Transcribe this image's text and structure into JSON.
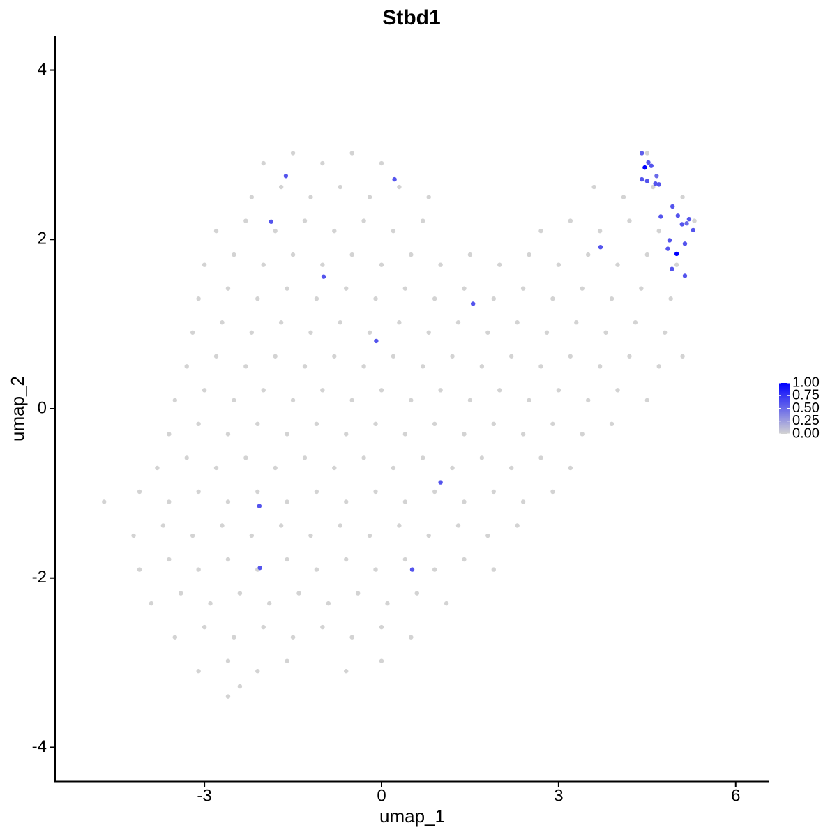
{
  "chart_data": {
    "type": "scatter",
    "title": "Stbd1",
    "x_label": "umap_1",
    "y_label": "umap_2",
    "xlim": [
      -5.53,
      6.57
    ],
    "ylim": [
      -4.4,
      4.4
    ],
    "xticks": [
      -3,
      0,
      3,
      6
    ],
    "yticks": [
      -4,
      -2,
      0,
      2,
      4
    ],
    "color_low": "#d3d3d3",
    "color_high": "#0000ff",
    "legend_position": "right",
    "legend_ticks": [
      {
        "value": 0,
        "label": "0.00"
      },
      {
        "value": 0.25,
        "label": "0.25"
      },
      {
        "value": 0.5,
        "label": "0.50"
      },
      {
        "value": 0.75,
        "label": "0.75"
      },
      {
        "value": 1,
        "label": "1.00"
      }
    ],
    "x": [
      -2.0,
      -1.5,
      -1.0,
      -0.5,
      0.0,
      4.5,
      -2.2,
      -1.7,
      -1.2,
      -0.7,
      -0.2,
      0.3,
      0.8,
      3.6,
      4.1,
      4.6,
      5.1,
      -2.8,
      -2.3,
      -1.8,
      -1.3,
      -0.8,
      -0.3,
      0.2,
      0.7,
      2.7,
      3.2,
      3.7,
      4.2,
      4.7,
      5.3,
      -3.0,
      -2.5,
      -2.0,
      -1.5,
      -1.0,
      -0.5,
      0.0,
      0.5,
      1.0,
      1.5,
      2.0,
      2.5,
      3.0,
      3.5,
      4.0,
      4.5,
      5.0,
      -3.1,
      -2.6,
      -2.1,
      -1.6,
      -1.1,
      -0.6,
      -0.1,
      0.4,
      0.9,
      1.4,
      1.9,
      2.4,
      2.9,
      3.4,
      3.9,
      4.4,
      4.9,
      -3.2,
      -2.7,
      -2.2,
      -1.7,
      -1.2,
      -0.7,
      -0.2,
      0.3,
      0.8,
      1.3,
      1.8,
      2.3,
      2.8,
      3.3,
      3.8,
      4.3,
      4.8,
      -3.3,
      -2.8,
      -2.3,
      -1.8,
      -1.3,
      -0.8,
      -0.3,
      0.2,
      0.7,
      1.2,
      1.7,
      2.2,
      2.7,
      3.2,
      3.7,
      4.2,
      4.7,
      5.1,
      -3.5,
      -3.0,
      -2.5,
      -2.0,
      -1.5,
      -1.0,
      -0.5,
      0.0,
      0.5,
      1.0,
      1.5,
      2.0,
      2.5,
      3.0,
      3.5,
      4.0,
      4.5,
      -3.6,
      -3.1,
      -2.6,
      -2.1,
      -1.6,
      -1.1,
      -0.6,
      -0.1,
      0.4,
      0.9,
      1.4,
      1.9,
      2.4,
      2.9,
      3.4,
      3.9,
      -3.8,
      -3.3,
      -2.8,
      -2.3,
      -1.8,
      -1.3,
      -0.8,
      -0.3,
      0.2,
      0.7,
      1.2,
      1.7,
      2.2,
      2.7,
      3.2,
      -4.7,
      -4.1,
      -3.6,
      -3.1,
      -2.6,
      -2.1,
      -1.6,
      -1.1,
      -0.6,
      -0.1,
      0.4,
      0.9,
      1.4,
      1.9,
      2.4,
      2.9,
      -4.2,
      -3.7,
      -3.2,
      -2.7,
      -2.2,
      -1.7,
      -1.2,
      -0.7,
      -0.2,
      0.3,
      0.8,
      1.3,
      1.8,
      2.3,
      -4.1,
      -3.6,
      -3.1,
      -2.6,
      -2.1,
      -1.6,
      -1.1,
      -0.6,
      -0.1,
      0.4,
      0.9,
      1.4,
      1.9,
      -3.9,
      -3.4,
      -2.9,
      -2.4,
      -1.9,
      -1.4,
      -0.9,
      -0.4,
      0.1,
      0.6,
      1.1,
      -3.5,
      -3.0,
      -2.5,
      -2.0,
      -1.5,
      -1.0,
      -0.5,
      0.0,
      0.5,
      -3.1,
      -2.6,
      -2.1,
      -1.6,
      -0.6,
      0.0,
      -2.6,
      -2.4,
      -1.62,
      -1.87,
      0.22,
      -0.98,
      -0.09,
      1.55,
      3.71,
      1.0,
      -2.07,
      -2.06,
      0.52,
      4.41,
      4.46,
      4.52,
      4.57,
      4.41,
      4.5,
      4.64,
      4.7,
      4.66,
      4.73,
      4.93,
      5.02,
      5.09,
      5.21,
      5.28,
      4.88,
      4.85,
      5.0,
      5.14,
      4.92,
      5.14,
      5.17
    ],
    "y": [
      2.9,
      3.02,
      2.9,
      3.02,
      2.9,
      3.02,
      2.5,
      2.62,
      2.5,
      2.62,
      2.5,
      2.62,
      2.5,
      2.62,
      2.5,
      2.62,
      2.5,
      2.1,
      2.22,
      2.1,
      2.22,
      2.1,
      2.22,
      2.1,
      2.22,
      2.1,
      2.22,
      2.1,
      2.22,
      2.1,
      2.22,
      1.7,
      1.82,
      1.7,
      1.82,
      1.7,
      1.82,
      1.7,
      1.82,
      1.7,
      1.82,
      1.7,
      1.82,
      1.7,
      1.82,
      1.7,
      1.82,
      1.7,
      1.3,
      1.42,
      1.3,
      1.42,
      1.3,
      1.42,
      1.3,
      1.42,
      1.3,
      1.42,
      1.3,
      1.42,
      1.3,
      1.42,
      1.3,
      1.42,
      1.3,
      0.9,
      1.02,
      0.9,
      1.02,
      0.9,
      1.02,
      0.9,
      1.02,
      0.9,
      1.02,
      0.9,
      1.02,
      0.9,
      1.02,
      0.9,
      1.02,
      0.9,
      0.5,
      0.62,
      0.5,
      0.62,
      0.5,
      0.62,
      0.5,
      0.62,
      0.5,
      0.62,
      0.5,
      0.62,
      0.5,
      0.62,
      0.5,
      0.62,
      0.5,
      0.62,
      0.1,
      0.22,
      0.1,
      0.22,
      0.1,
      0.22,
      0.1,
      0.22,
      0.1,
      0.22,
      0.1,
      0.22,
      0.1,
      0.22,
      0.1,
      0.22,
      0.1,
      -0.3,
      -0.18,
      -0.3,
      -0.18,
      -0.3,
      -0.18,
      -0.3,
      -0.18,
      -0.3,
      -0.18,
      -0.3,
      -0.18,
      -0.3,
      -0.18,
      -0.3,
      -0.18,
      -0.7,
      -0.58,
      -0.7,
      -0.58,
      -0.7,
      -0.58,
      -0.7,
      -0.58,
      -0.7,
      -0.58,
      -0.7,
      -0.58,
      -0.7,
      -0.58,
      -0.7,
      -1.1,
      -0.98,
      -1.1,
      -0.98,
      -1.1,
      -0.98,
      -1.1,
      -0.98,
      -1.1,
      -0.98,
      -1.1,
      -0.98,
      -1.1,
      -0.98,
      -1.1,
      -0.98,
      -1.5,
      -1.38,
      -1.5,
      -1.38,
      -1.5,
      -1.38,
      -1.5,
      -1.38,
      -1.5,
      -1.38,
      -1.5,
      -1.38,
      -1.5,
      -1.38,
      -1.9,
      -1.78,
      -1.9,
      -1.78,
      -1.9,
      -1.78,
      -1.9,
      -1.78,
      -1.9,
      -1.78,
      -1.9,
      -1.78,
      -1.9,
      -2.3,
      -2.18,
      -2.3,
      -2.18,
      -2.3,
      -2.18,
      -2.3,
      -2.18,
      -2.3,
      -2.18,
      -2.3,
      -2.7,
      -2.58,
      -2.7,
      -2.58,
      -2.7,
      -2.58,
      -2.7,
      -2.58,
      -2.7,
      -3.1,
      -2.98,
      -3.1,
      -2.98,
      -3.1,
      -2.98,
      -3.4,
      -3.28,
      2.75,
      2.21,
      2.71,
      1.56,
      0.8,
      1.24,
      1.91,
      -0.87,
      -1.15,
      -1.88,
      -1.9,
      3.02,
      2.85,
      2.91,
      2.87,
      2.71,
      2.69,
      2.66,
      2.65,
      2.75,
      2.27,
      2.39,
      2.28,
      2.18,
      2.24,
      2.11,
      1.99,
      1.89,
      1.83,
      1.95,
      1.65,
      1.57,
      2.19
    ],
    "values": [
      0,
      0,
      0,
      0,
      0,
      0,
      0,
      0,
      0,
      0,
      0,
      0,
      0,
      0,
      0,
      0,
      0,
      0,
      0,
      0,
      0,
      0,
      0,
      0,
      0,
      0,
      0,
      0,
      0,
      0,
      0,
      0,
      0,
      0,
      0,
      0,
      0,
      0,
      0,
      0,
      0,
      0,
      0,
      0,
      0,
      0,
      0,
      0,
      0,
      0,
      0,
      0,
      0,
      0,
      0,
      0,
      0,
      0,
      0,
      0,
      0,
      0,
      0,
      0,
      0,
      0,
      0,
      0,
      0,
      0,
      0,
      0,
      0,
      0,
      0,
      0,
      0,
      0,
      0,
      0,
      0,
      0,
      0,
      0,
      0,
      0,
      0,
      0,
      0,
      0,
      0,
      0,
      0,
      0,
      0,
      0,
      0,
      0,
      0,
      0,
      0,
      0,
      0,
      0,
      0,
      0,
      0,
      0,
      0,
      0,
      0,
      0,
      0,
      0,
      0,
      0,
      0,
      0,
      0,
      0,
      0,
      0,
      0,
      0,
      0,
      0,
      0,
      0,
      0,
      0,
      0,
      0,
      0,
      0,
      0,
      0,
      0,
      0,
      0,
      0,
      0,
      0,
      0,
      0,
      0,
      0,
      0,
      0,
      0,
      0,
      0,
      0,
      0,
      0,
      0,
      0,
      0,
      0,
      0,
      0,
      0,
      0,
      0,
      0,
      0,
      0,
      0,
      0,
      0,
      0,
      0,
      0,
      0,
      0,
      0,
      0,
      0,
      0,
      0,
      0,
      0,
      0,
      0,
      0,
      0,
      0,
      0,
      0,
      0,
      0,
      0,
      0,
      0,
      0,
      0,
      0,
      0,
      0,
      0,
      0,
      0,
      0,
      0,
      0,
      0,
      0,
      0,
      0,
      0,
      0,
      0,
      0,
      0,
      0,
      0,
      0,
      0,
      0,
      0,
      0.6,
      0.6,
      0.6,
      0.6,
      0.6,
      0.6,
      0.6,
      0.6,
      0.6,
      0.6,
      0.6,
      0.55,
      1.0,
      0.6,
      0.6,
      0.6,
      0.6,
      0.6,
      0.6,
      0.5,
      0.6,
      0.6,
      0.6,
      0.6,
      0.6,
      0.6,
      0.6,
      0.6,
      1.0,
      0.6,
      0.6,
      0.6,
      0.5
    ]
  }
}
